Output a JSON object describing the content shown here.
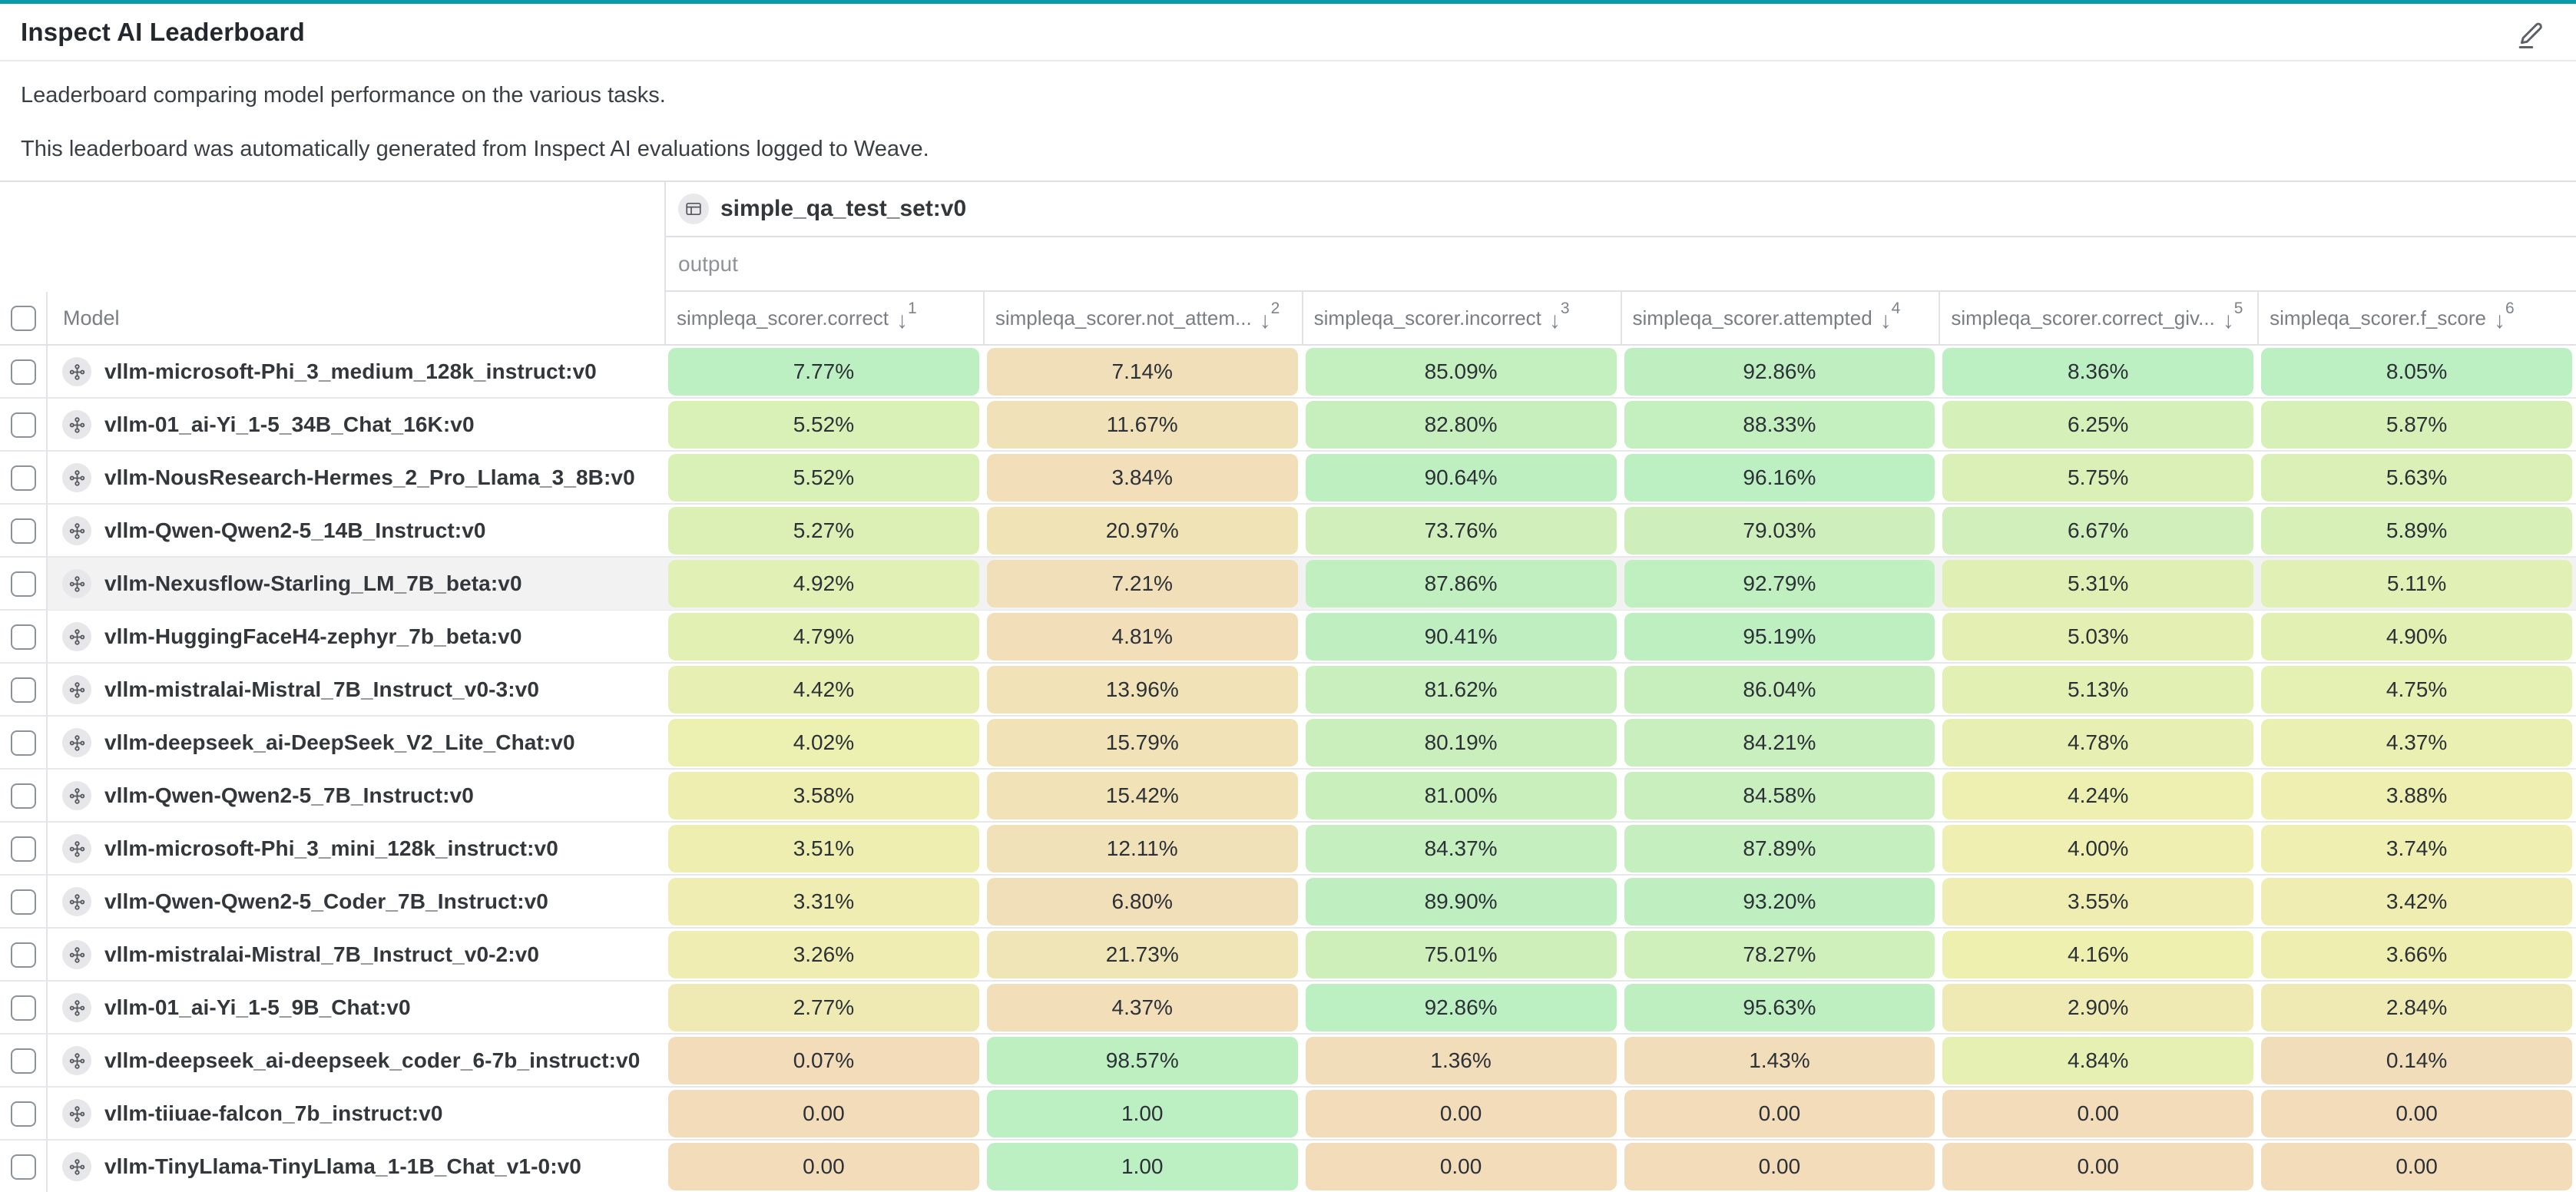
{
  "page": {
    "title": "Inspect AI Leaderboard",
    "description1": "Leaderboard comparing model performance on the various tasks.",
    "description2": "This leaderboard was automatically generated from Inspect AI evaluations logged to Weave."
  },
  "colors": {
    "accent_teal": "#0a9ba6",
    "grade_low": "#f2dcba",
    "grade_mid": "#eef0b0",
    "grade_high": "#bcefc1",
    "hover_row": "#f2f2f3"
  },
  "table": {
    "group_header": {
      "label": "simple_qa_test_set:v0"
    },
    "sub_header": "output",
    "model_column_label": "Model",
    "columns": [
      {
        "label": "simpleqa_scorer.correct",
        "sort_order": 1
      },
      {
        "label": "simpleqa_scorer.not_attem...",
        "sort_order": 2
      },
      {
        "label": "simpleqa_scorer.incorrect",
        "sort_order": 3
      },
      {
        "label": "simpleqa_scorer.attempted",
        "sort_order": 4
      },
      {
        "label": "simpleqa_scorer.correct_giv...",
        "sort_order": 5
      },
      {
        "label": "simpleqa_scorer.f_score",
        "sort_order": 6
      }
    ],
    "rows": [
      {
        "model": "vllm-microsoft-Phi_3_medium_128k_instruct:v0",
        "values": [
          {
            "d": "7.77%",
            "v": 7.77
          },
          {
            "d": "7.14%",
            "v": 7.14
          },
          {
            "d": "85.09%",
            "v": 85.09
          },
          {
            "d": "92.86%",
            "v": 92.86
          },
          {
            "d": "8.36%",
            "v": 8.36
          },
          {
            "d": "8.05%",
            "v": 8.05
          }
        ]
      },
      {
        "model": "vllm-01_ai-Yi_1-5_34B_Chat_16K:v0",
        "values": [
          {
            "d": "5.52%",
            "v": 5.52
          },
          {
            "d": "11.67%",
            "v": 11.67
          },
          {
            "d": "82.80%",
            "v": 82.8
          },
          {
            "d": "88.33%",
            "v": 88.33
          },
          {
            "d": "6.25%",
            "v": 6.25
          },
          {
            "d": "5.87%",
            "v": 5.87
          }
        ]
      },
      {
        "model": "vllm-NousResearch-Hermes_2_Pro_Llama_3_8B:v0",
        "values": [
          {
            "d": "5.52%",
            "v": 5.52
          },
          {
            "d": "3.84%",
            "v": 3.84
          },
          {
            "d": "90.64%",
            "v": 90.64
          },
          {
            "d": "96.16%",
            "v": 96.16
          },
          {
            "d": "5.75%",
            "v": 5.75
          },
          {
            "d": "5.63%",
            "v": 5.63
          }
        ]
      },
      {
        "model": "vllm-Qwen-Qwen2-5_14B_Instruct:v0",
        "values": [
          {
            "d": "5.27%",
            "v": 5.27
          },
          {
            "d": "20.97%",
            "v": 20.97
          },
          {
            "d": "73.76%",
            "v": 73.76
          },
          {
            "d": "79.03%",
            "v": 79.03
          },
          {
            "d": "6.67%",
            "v": 6.67
          },
          {
            "d": "5.89%",
            "v": 5.89
          }
        ]
      },
      {
        "model": "vllm-Nexusflow-Starling_LM_7B_beta:v0",
        "hovered": true,
        "values": [
          {
            "d": "4.92%",
            "v": 4.92
          },
          {
            "d": "7.21%",
            "v": 7.21
          },
          {
            "d": "87.86%",
            "v": 87.86
          },
          {
            "d": "92.79%",
            "v": 92.79
          },
          {
            "d": "5.31%",
            "v": 5.31
          },
          {
            "d": "5.11%",
            "v": 5.11
          }
        ]
      },
      {
        "model": "vllm-HuggingFaceH4-zephyr_7b_beta:v0",
        "values": [
          {
            "d": "4.79%",
            "v": 4.79
          },
          {
            "d": "4.81%",
            "v": 4.81
          },
          {
            "d": "90.41%",
            "v": 90.41
          },
          {
            "d": "95.19%",
            "v": 95.19
          },
          {
            "d": "5.03%",
            "v": 5.03
          },
          {
            "d": "4.90%",
            "v": 4.9
          }
        ]
      },
      {
        "model": "vllm-mistralai-Mistral_7B_Instruct_v0-3:v0",
        "values": [
          {
            "d": "4.42%",
            "v": 4.42
          },
          {
            "d": "13.96%",
            "v": 13.96
          },
          {
            "d": "81.62%",
            "v": 81.62
          },
          {
            "d": "86.04%",
            "v": 86.04
          },
          {
            "d": "5.13%",
            "v": 5.13
          },
          {
            "d": "4.75%",
            "v": 4.75
          }
        ]
      },
      {
        "model": "vllm-deepseek_ai-DeepSeek_V2_Lite_Chat:v0",
        "values": [
          {
            "d": "4.02%",
            "v": 4.02
          },
          {
            "d": "15.79%",
            "v": 15.79
          },
          {
            "d": "80.19%",
            "v": 80.19
          },
          {
            "d": "84.21%",
            "v": 84.21
          },
          {
            "d": "4.78%",
            "v": 4.78
          },
          {
            "d": "4.37%",
            "v": 4.37
          }
        ]
      },
      {
        "model": "vllm-Qwen-Qwen2-5_7B_Instruct:v0",
        "values": [
          {
            "d": "3.58%",
            "v": 3.58
          },
          {
            "d": "15.42%",
            "v": 15.42
          },
          {
            "d": "81.00%",
            "v": 81.0
          },
          {
            "d": "84.58%",
            "v": 84.58
          },
          {
            "d": "4.24%",
            "v": 4.24
          },
          {
            "d": "3.88%",
            "v": 3.88
          }
        ]
      },
      {
        "model": "vllm-microsoft-Phi_3_mini_128k_instruct:v0",
        "values": [
          {
            "d": "3.51%",
            "v": 3.51
          },
          {
            "d": "12.11%",
            "v": 12.11
          },
          {
            "d": "84.37%",
            "v": 84.37
          },
          {
            "d": "87.89%",
            "v": 87.89
          },
          {
            "d": "4.00%",
            "v": 4.0
          },
          {
            "d": "3.74%",
            "v": 3.74
          }
        ]
      },
      {
        "model": "vllm-Qwen-Qwen2-5_Coder_7B_Instruct:v0",
        "values": [
          {
            "d": "3.31%",
            "v": 3.31
          },
          {
            "d": "6.80%",
            "v": 6.8
          },
          {
            "d": "89.90%",
            "v": 89.9
          },
          {
            "d": "93.20%",
            "v": 93.2
          },
          {
            "d": "3.55%",
            "v": 3.55
          },
          {
            "d": "3.42%",
            "v": 3.42
          }
        ]
      },
      {
        "model": "vllm-mistralai-Mistral_7B_Instruct_v0-2:v0",
        "values": [
          {
            "d": "3.26%",
            "v": 3.26
          },
          {
            "d": "21.73%",
            "v": 21.73
          },
          {
            "d": "75.01%",
            "v": 75.01
          },
          {
            "d": "78.27%",
            "v": 78.27
          },
          {
            "d": "4.16%",
            "v": 4.16
          },
          {
            "d": "3.66%",
            "v": 3.66
          }
        ]
      },
      {
        "model": "vllm-01_ai-Yi_1-5_9B_Chat:v0",
        "values": [
          {
            "d": "2.77%",
            "v": 2.77
          },
          {
            "d": "4.37%",
            "v": 4.37
          },
          {
            "d": "92.86%",
            "v": 92.86
          },
          {
            "d": "95.63%",
            "v": 95.63
          },
          {
            "d": "2.90%",
            "v": 2.9
          },
          {
            "d": "2.84%",
            "v": 2.84
          }
        ]
      },
      {
        "model": "vllm-deepseek_ai-deepseek_coder_6-7b_instruct:v0",
        "values": [
          {
            "d": "0.07%",
            "v": 0.07
          },
          {
            "d": "98.57%",
            "v": 98.57
          },
          {
            "d": "1.36%",
            "v": 1.36
          },
          {
            "d": "1.43%",
            "v": 1.43
          },
          {
            "d": "4.84%",
            "v": 4.84
          },
          {
            "d": "0.14%",
            "v": 0.14
          }
        ]
      },
      {
        "model": "vllm-tiiuae-falcon_7b_instruct:v0",
        "values": [
          {
            "d": "0.00",
            "v": 0
          },
          {
            "d": "1.00",
            "v": 100
          },
          {
            "d": "0.00",
            "v": 0
          },
          {
            "d": "0.00",
            "v": 0
          },
          {
            "d": "0.00",
            "v": 0
          },
          {
            "d": "0.00",
            "v": 0
          }
        ]
      },
      {
        "model": "vllm-TinyLlama-TinyLlama_1-1B_Chat_v1-0:v0",
        "values": [
          {
            "d": "0.00",
            "v": 0
          },
          {
            "d": "1.00",
            "v": 100
          },
          {
            "d": "0.00",
            "v": 0
          },
          {
            "d": "0.00",
            "v": 0
          },
          {
            "d": "0.00",
            "v": 0
          },
          {
            "d": "0.00",
            "v": 0
          }
        ]
      }
    ]
  }
}
